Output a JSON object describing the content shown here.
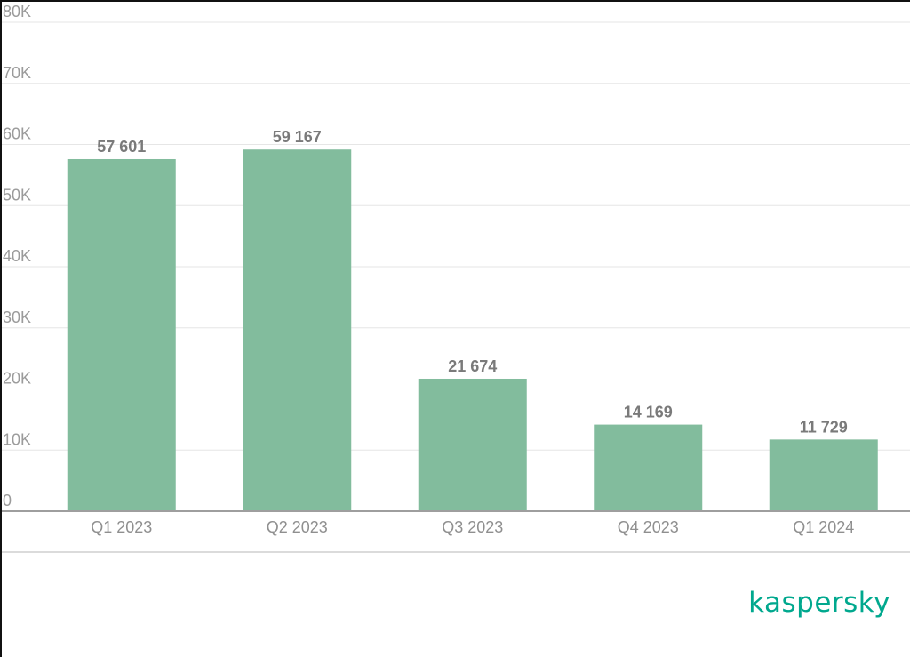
{
  "chart_data": {
    "type": "bar",
    "categories": [
      "Q1 2023",
      "Q2 2023",
      "Q3 2023",
      "Q4 2023",
      "Q1 2024"
    ],
    "values": [
      57601,
      59167,
      21674,
      14169,
      11729
    ],
    "data_labels": [
      "57 601",
      "59 167",
      "21 674",
      "14 169",
      "11 729"
    ],
    "ylim": [
      0,
      80000
    ],
    "yticks": [
      0,
      10000,
      20000,
      30000,
      40000,
      50000,
      60000,
      70000,
      80000
    ],
    "ytick_labels": [
      "0",
      "10K",
      "20K",
      "30K",
      "40K",
      "50K",
      "60K",
      "70K",
      "80K"
    ],
    "grid": true,
    "bar_color": "#82bc9d",
    "title": "",
    "xlabel": "",
    "ylabel": ""
  },
  "brand": {
    "logo_text": "kaspersky",
    "color": "#00a88e"
  }
}
